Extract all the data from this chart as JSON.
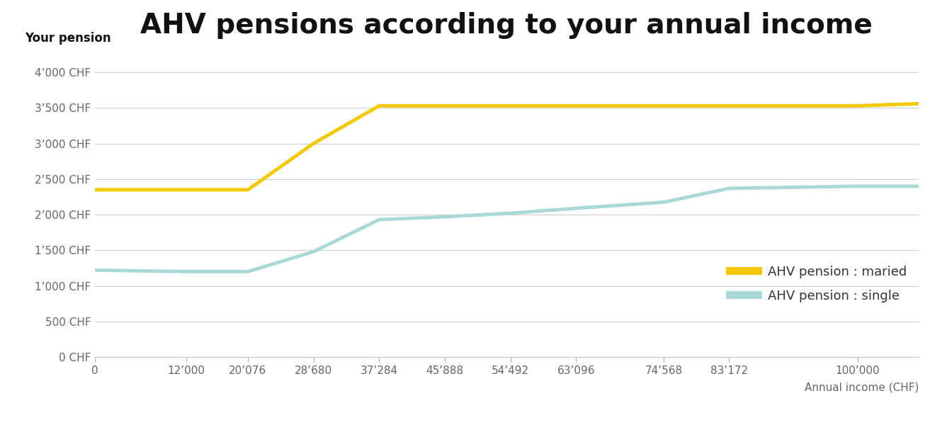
{
  "title": "AHV pensions according to your annual income",
  "xlabel": "Annual income (CHF)",
  "ylabel": "Your pension",
  "x_ticks": [
    0,
    12000,
    20076,
    28680,
    37284,
    45888,
    54492,
    63096,
    74568,
    83172,
    100000
  ],
  "x_tick_labels": [
    "0",
    "12’000",
    "20’076",
    "28’680",
    "37’284",
    "45’888",
    "54’492",
    "63’096",
    "74’568",
    "83’172",
    "100’000"
  ],
  "y_ticks": [
    0,
    500,
    1000,
    1500,
    2000,
    2500,
    3000,
    3500,
    4000
  ],
  "y_tick_labels": [
    "0 CHF",
    "500 CHF",
    "1’000 CHF",
    "1’500 CHF",
    "2’000 CHF",
    "2’500 CHF",
    "3’000 CHF",
    "3’500 CHF",
    "4’000 CHF"
  ],
  "ylim": [
    0,
    4300
  ],
  "xlim": [
    0,
    108000
  ],
  "married_x": [
    0,
    12000,
    20076,
    28680,
    37284,
    45888,
    54492,
    63096,
    74568,
    83172,
    100000,
    108000
  ],
  "married_y": [
    2350,
    2350,
    2350,
    3000,
    3530,
    3530,
    3530,
    3530,
    3530,
    3530,
    3530,
    3560
  ],
  "single_x": [
    0,
    12000,
    20076,
    28680,
    37284,
    45888,
    54492,
    63096,
    74568,
    83172,
    100000,
    108000
  ],
  "single_y": [
    1220,
    1200,
    1200,
    1480,
    1930,
    1970,
    2020,
    2090,
    2175,
    2370,
    2400,
    2400
  ],
  "married_color": "#F5C800",
  "single_color": "#A8D8D8",
  "line_width": 3.5,
  "legend_married": "AHV pension : maried",
  "legend_single": "AHV pension : single",
  "background_color": "#ffffff",
  "grid_color": "#cccccc",
  "title_fontsize": 28,
  "axis_label_fontsize": 11,
  "tick_fontsize": 11
}
